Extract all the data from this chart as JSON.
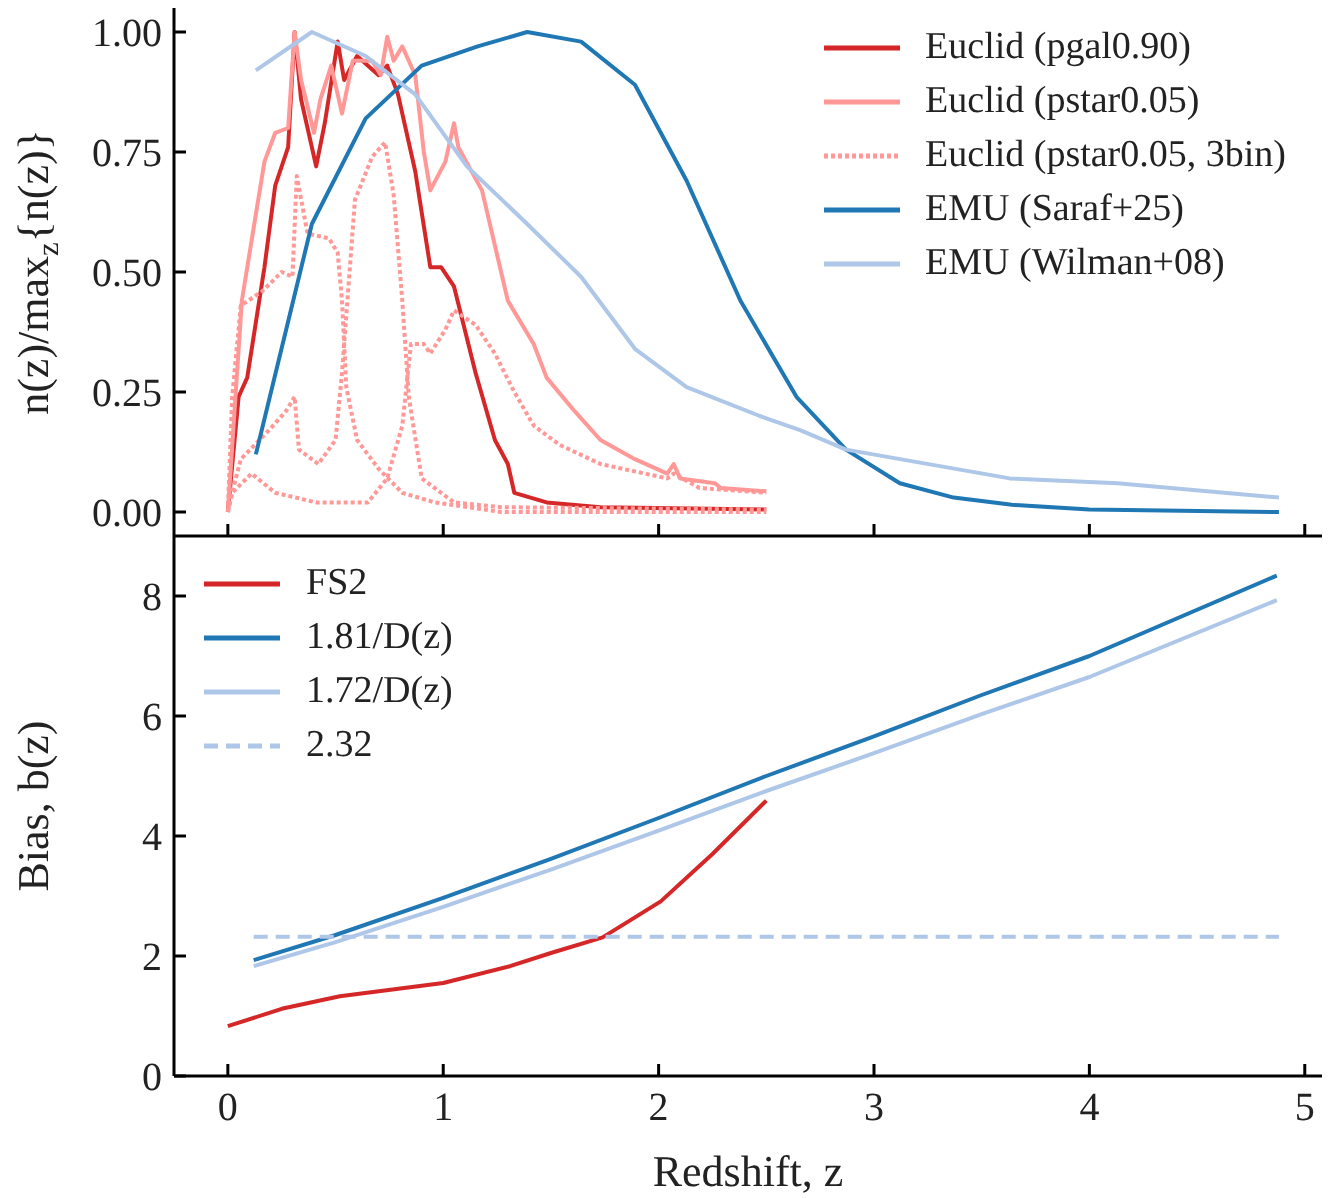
{
  "chart_data": [
    {
      "type": "line",
      "ylabel": "n(z)/max$_{z}${n(z)}",
      "xlim": [
        -0.25,
        5.08
      ],
      "ylim": [
        -0.05,
        1.05
      ],
      "xticks": [
        0,
        1,
        2,
        3,
        4,
        5
      ],
      "yticks": [
        {
          "value": 0,
          "label": "0.00"
        },
        {
          "value": 0.25,
          "label": "0.25"
        },
        {
          "value": 0.5,
          "label": "0.50"
        },
        {
          "value": 0.75,
          "label": "0.75"
        },
        {
          "value": 1,
          "label": "1.00"
        }
      ],
      "tick_labels": "y",
      "legend": "top right",
      "grid": false,
      "marker": "none",
      "series": [
        {
          "name": "Euclid (pgal0.90)",
          "color": "#d62728",
          "x": [
            0,
            0.05,
            0.09,
            0.17,
            0.22,
            0.28,
            0.31,
            0.34,
            0.41,
            0.45,
            0.51,
            0.54,
            0.6,
            0.7,
            0.74,
            0.79,
            0.87,
            0.94,
            0.99,
            1.05,
            1.15,
            1.24,
            1.3,
            1.33,
            1.48,
            1.73,
            2.5
          ],
          "values": [
            0,
            0.24,
            0.28,
            0.51,
            0.68,
            0.76,
            1.0,
            0.86,
            0.72,
            0.81,
            0.98,
            0.9,
            0.95,
            0.91,
            0.93,
            0.87,
            0.71,
            0.51,
            0.51,
            0.47,
            0.29,
            0.15,
            0.1,
            0.04,
            0.02,
            0.01,
            0.005
          ]
        },
        {
          "name": "Euclid (pstar0.05)",
          "color": "#ff9896",
          "x": [
            0,
            0.065,
            0.13,
            0.17,
            0.22,
            0.28,
            0.31,
            0.34,
            0.4,
            0.43,
            0.48,
            0.53,
            0.58,
            0.67,
            0.71,
            0.74,
            0.77,
            0.81,
            0.87,
            0.91,
            0.94,
            1.01,
            1.05,
            1.07,
            1.18,
            1.3,
            1.42,
            1.48,
            1.61,
            1.73,
            1.89,
            2.04,
            2.07,
            2.1,
            2.26,
            2.29,
            2.5
          ],
          "values": [
            0,
            0.44,
            0.62,
            0.73,
            0.79,
            0.8,
            1.0,
            0.9,
            0.79,
            0.86,
            0.93,
            0.83,
            0.94,
            0.94,
            0.91,
            0.99,
            0.94,
            0.97,
            0.91,
            0.75,
            0.67,
            0.73,
            0.81,
            0.76,
            0.67,
            0.44,
            0.35,
            0.28,
            0.21,
            0.15,
            0.11,
            0.08,
            0.1,
            0.07,
            0.06,
            0.05,
            0.043
          ]
        },
        {
          "name": "Euclid (pstar0.05, 3bin)",
          "color": "#ff9896",
          "line_style": "dotted",
          "x": [
            0,
            0.02,
            0.06,
            0.16,
            0.25,
            0.3,
            0.32,
            0.37,
            0.47,
            0.51,
            0.53,
            0.55,
            0.6,
            0.7,
            0.81,
            0.96,
            1.27,
            2.5
          ],
          "values": [
            0,
            0.24,
            0.43,
            0.46,
            0.5,
            0.49,
            0.7,
            0.58,
            0.57,
            0.54,
            0.44,
            0.26,
            0.15,
            0.09,
            0.04,
            0.02,
            0,
            0
          ]
        },
        {
          "color": "#ff9896",
          "line_style": "dotted",
          "x": [
            0,
            0.02,
            0.06,
            0.19,
            0.27,
            0.31,
            0.33,
            0.42,
            0.5,
            0.53,
            0.59,
            0.67,
            0.73,
            0.77,
            0.81,
            0.84,
            0.9,
            1.05,
            1.27,
            2.5
          ],
          "values": [
            0,
            0.04,
            0.11,
            0.17,
            0.21,
            0.24,
            0.13,
            0.1,
            0.15,
            0.29,
            0.65,
            0.74,
            0.77,
            0.66,
            0.44,
            0.24,
            0.07,
            0.02,
            0.01,
            0.005
          ]
        },
        {
          "color": "#ff9896",
          "line_style": "dotted",
          "x": [
            0,
            0.02,
            0.11,
            0.22,
            0.41,
            0.65,
            0.74,
            0.81,
            0.85,
            0.91,
            0.94,
            1.01,
            1.05,
            1.15,
            1.24,
            1.33,
            1.42,
            1.54,
            1.73,
            2.04,
            2.07,
            2.19,
            2.5
          ],
          "values": [
            0,
            0.04,
            0.08,
            0.04,
            0.02,
            0.02,
            0.07,
            0.18,
            0.35,
            0.35,
            0.33,
            0.38,
            0.42,
            0.39,
            0.33,
            0.25,
            0.18,
            0.14,
            0.1,
            0.07,
            0.08,
            0.05,
            0.04
          ]
        },
        {
          "name": "EMU (Saraf+25)",
          "color": "#1f77b4",
          "x": [
            0.13,
            0.39,
            0.64,
            0.9,
            1.16,
            1.39,
            1.64,
            1.89,
            2.13,
            2.38,
            2.64,
            2.87,
            3.12,
            3.37,
            3.64,
            4.0,
            4.88
          ],
          "values": [
            0.12,
            0.6,
            0.82,
            0.93,
            0.97,
            1.0,
            0.98,
            0.89,
            0.69,
            0.44,
            0.24,
            0.13,
            0.06,
            0.03,
            0.015,
            0.005,
            0
          ]
        },
        {
          "name": "EMU (Wilman+08)",
          "color": "#aec7e8",
          "x": [
            0.13,
            0.39,
            0.64,
            0.87,
            1.11,
            1.39,
            1.64,
            1.89,
            2.13,
            2.47,
            2.66,
            2.87,
            3.63,
            4.13,
            4.88
          ],
          "values": [
            0.92,
            1.0,
            0.95,
            0.87,
            0.72,
            0.6,
            0.49,
            0.34,
            0.26,
            0.2,
            0.17,
            0.13,
            0.07,
            0.06,
            0.03
          ]
        }
      ]
    },
    {
      "type": "line",
      "xlabel": "Redshift, z",
      "ylabel": "Bias, b(z)",
      "xlim": [
        -0.25,
        5.08
      ],
      "ylim": [
        0,
        9
      ],
      "xticks": [
        0,
        1,
        2,
        3,
        4,
        5
      ],
      "yticks": [
        0,
        2,
        4,
        6,
        8
      ],
      "legend": "top left",
      "grid": false,
      "marker": "none",
      "series": [
        {
          "name": "FS2",
          "color": "#d62728",
          "x": [
            0,
            0.25,
            0.52,
            1.0,
            1.31,
            1.5,
            1.74,
            2.01,
            2.25,
            2.5
          ],
          "values": [
            0.83,
            1.12,
            1.33,
            1.55,
            1.83,
            2.05,
            2.31,
            2.91,
            3.7,
            4.59
          ]
        },
        {
          "name": "1.81/D(z)",
          "color": "#1f77b4",
          "x": [
            0.12,
            0.5,
            1,
            1.5,
            2,
            2.5,
            3,
            3.5,
            4,
            4.87
          ],
          "values": [
            1.93,
            2.35,
            2.97,
            3.62,
            4.3,
            5.0,
            5.66,
            6.35,
            7.0,
            8.34
          ]
        },
        {
          "name": "1.72/D(z)",
          "color": "#aec7e8",
          "x": [
            0.12,
            0.5,
            1,
            1.5,
            2,
            2.5,
            3,
            3.5,
            4,
            4.87
          ],
          "values": [
            1.83,
            2.23,
            2.82,
            3.44,
            4.09,
            4.75,
            5.38,
            6.03,
            6.65,
            7.93
          ]
        },
        {
          "name": "2.32",
          "color": "#aec7e8",
          "line_style": "dashed",
          "x": [
            0.12,
            4.88
          ],
          "values": [
            2.32,
            2.32
          ]
        }
      ]
    }
  ]
}
